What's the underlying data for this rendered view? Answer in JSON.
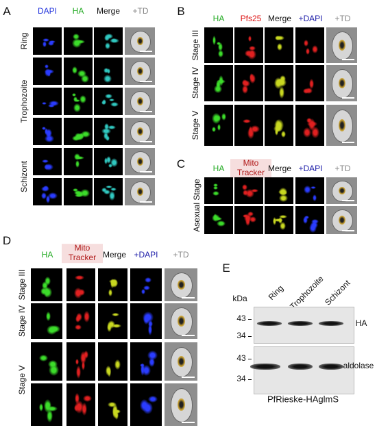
{
  "panels": {
    "A": {
      "label": "A",
      "columns": [
        "DAPI",
        "HA",
        "Merge",
        "+TD"
      ],
      "rows": [
        "Ring",
        "Trophozoite",
        "Schizont"
      ]
    },
    "B": {
      "label": "B",
      "columns": [
        "HA",
        "Pfs25",
        "Merge",
        "+DAPI",
        "+TD"
      ],
      "rows": [
        "Stage III",
        "Stage IV",
        "Stage V"
      ]
    },
    "C": {
      "label": "C",
      "columns": [
        "HA",
        "Mito Tracker",
        "Merge",
        "+DAPI",
        "+TD"
      ],
      "rows": [
        "Asexual Stage"
      ]
    },
    "D": {
      "label": "D",
      "columns": [
        "HA",
        "Mito Tracker",
        "Merge",
        "+DAPI",
        "+TD"
      ],
      "rows": [
        "Stage III",
        "Stage IV",
        "Stage V"
      ]
    },
    "E": {
      "label": "E",
      "lanes": [
        "Ring",
        "Trophozoite",
        "Schizont"
      ],
      "unit": "kDa",
      "blots": [
        {
          "name": "HA",
          "markers": [
            "43",
            "34"
          ]
        },
        {
          "name": "aldolase",
          "markers": [
            "43",
            "34"
          ]
        }
      ],
      "caption": "PfRieske-HAglmS"
    }
  }
}
